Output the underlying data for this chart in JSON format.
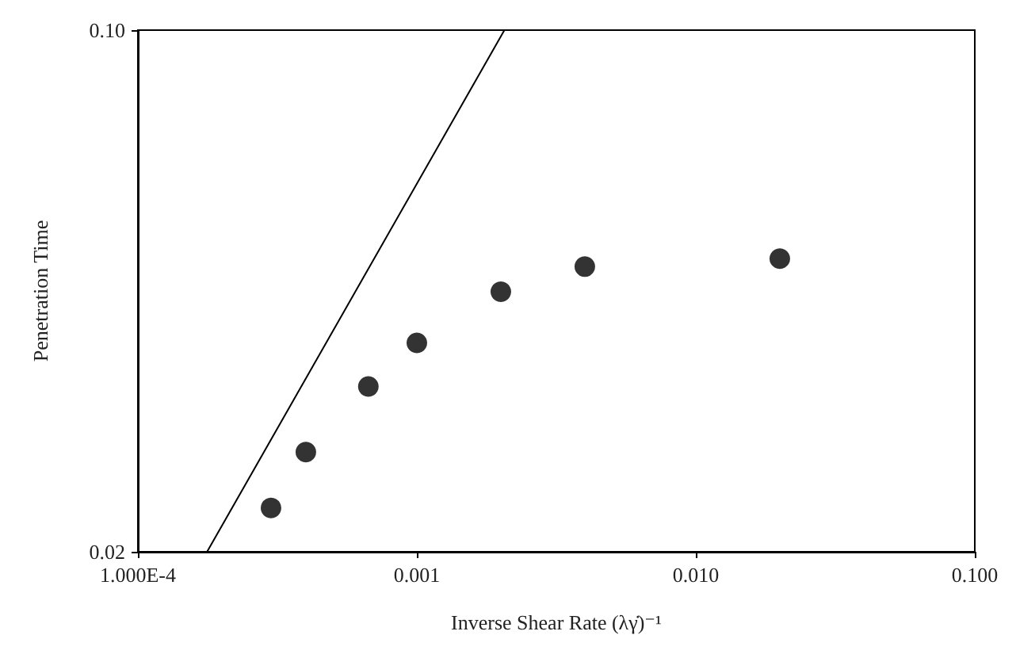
{
  "chart_data": {
    "type": "scatter",
    "xlabel": "Inverse Shear Rate (λγ̇)⁻¹",
    "ylabel": "Penetration Time",
    "log": "xy",
    "grid": false,
    "xlim": [
      0.0001,
      0.1
    ],
    "xticks": [
      {
        "value": 0.0001,
        "label": "1.000E-4"
      },
      {
        "value": 0.001,
        "label": "0.001"
      },
      {
        "value": 0.01,
        "label": "0.010"
      },
      {
        "value": 0.1,
        "label": "0.100"
      }
    ],
    "ylim": [
      0.02,
      0.1
    ],
    "yticks": [
      {
        "value": 0.02,
        "label": "0.02"
      },
      {
        "value": 0.1,
        "label": "0.10"
      }
    ],
    "series": [
      {
        "color": "#000000",
        "marker": "circle",
        "x": [
          0.0003,
          0.0004,
          0.00067,
          0.001,
          0.002,
          0.004,
          0.02
        ],
        "values": [
          0.0229,
          0.0272,
          0.0333,
          0.0381,
          0.0446,
          0.0482,
          0.0494
        ]
      },
      {
        "type": "line",
        "color": "#000000",
        "marker": "none",
        "line_style": "solid",
        "x": [
          0.000177,
          0.00206
        ],
        "values": [
          0.02,
          0.1
        ]
      }
    ]
  }
}
